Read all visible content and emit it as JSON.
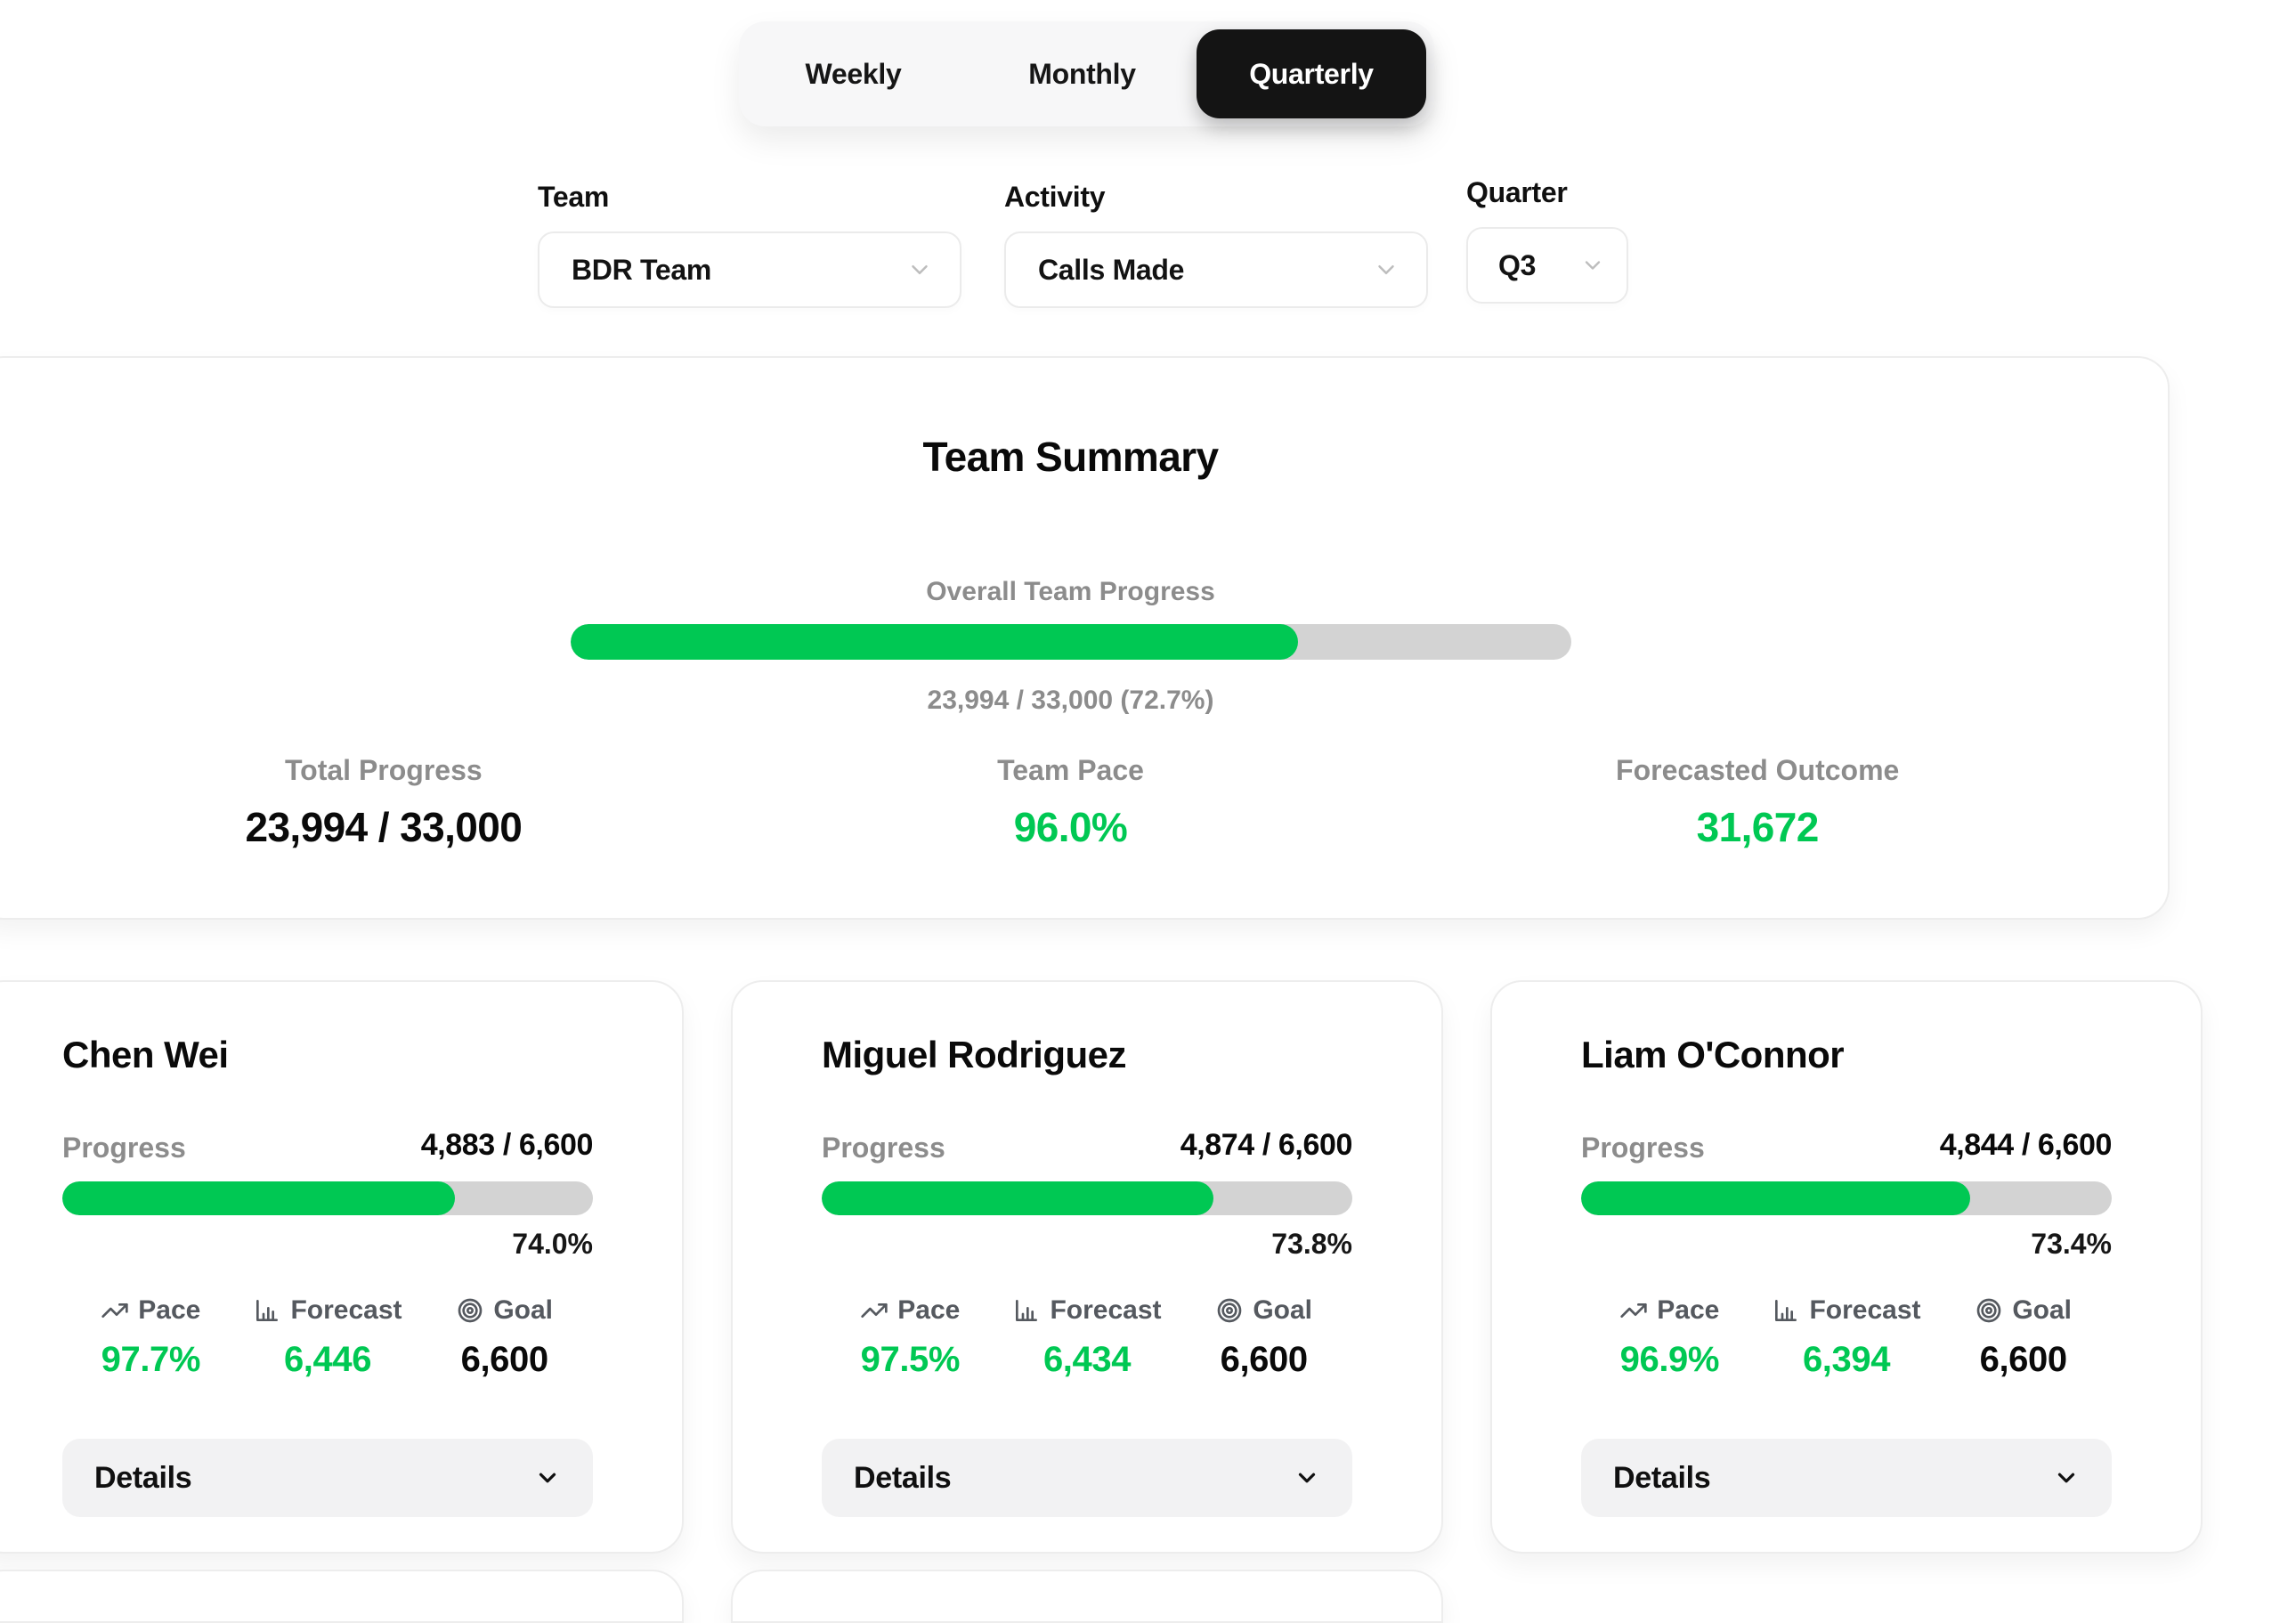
{
  "view_switcher": {
    "options": [
      {
        "label": "Weekly",
        "active": false
      },
      {
        "label": "Monthly",
        "active": false
      },
      {
        "label": "Quarterly",
        "active": true
      }
    ]
  },
  "filters": {
    "team": {
      "label": "Team",
      "value": "BDR Team"
    },
    "activity": {
      "label": "Activity",
      "value": "Calls Made"
    },
    "quarter": {
      "label": "Quarter",
      "value": "Q3"
    }
  },
  "team_summary": {
    "title": "Team Summary",
    "progress_label": "Overall Team Progress",
    "progress_caption": "23,994 / 33,000 (72.7%)",
    "progress_percent": 72.7,
    "stats": [
      {
        "label": "Total Progress",
        "value": "23,994 / 33,000"
      },
      {
        "label": "Team Pace",
        "value": "96.0%"
      },
      {
        "label": "Forecasted Outcome",
        "value": "31,672"
      }
    ]
  },
  "member_card_ui": {
    "progress_label": "Progress",
    "pace_label": "Pace",
    "forecast_label": "Forecast",
    "goal_label": "Goal",
    "details_label": "Details"
  },
  "members": [
    {
      "name": "Chen Wei",
      "progress_value": "4,883 / 6,600",
      "progress_percent": 74.0,
      "percent_label": "74.0%",
      "pace": "97.7%",
      "forecast": "6,446",
      "goal": "6,600"
    },
    {
      "name": "Miguel Rodriguez",
      "progress_value": "4,874 / 6,600",
      "progress_percent": 73.8,
      "percent_label": "73.8%",
      "pace": "97.5%",
      "forecast": "6,434",
      "goal": "6,600"
    },
    {
      "name": "Liam O'Connor",
      "progress_value": "4,844 / 6,600",
      "progress_percent": 73.4,
      "percent_label": "73.4%",
      "pace": "96.9%",
      "forecast": "6,394",
      "goal": "6,600"
    }
  ],
  "icons": {
    "select": "chevron-down-icon",
    "pace": "trending-up-icon",
    "forecast": "bar-chart-icon",
    "goal": "target-icon",
    "details": "chevron-down-icon"
  },
  "colors": {
    "accent_green": "#00C853",
    "progress_track": "#D3D3D3",
    "active_tab_bg": "#141414",
    "active_tab_text": "#FFFFFF",
    "muted_text": "#8C8C8C"
  }
}
